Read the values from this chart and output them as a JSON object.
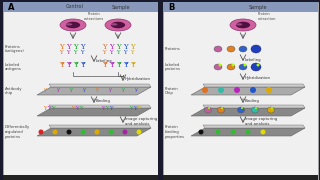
{
  "bg_color": "#1a1a2e",
  "panel_left_bg": "#f5f5f5",
  "panel_right_bg": "#f5f5f5",
  "header_color": "#8090b0",
  "left_label": "A",
  "right_label": "B",
  "left_col_labels": [
    "Control",
    "Sample"
  ],
  "right_col_labels": [
    "Sample"
  ],
  "left_side_labels": [
    "Proteins\n(antigens)",
    "Labeled\nantigens",
    "Antibody\nchip",
    "Differentially\nregulated\nproteins"
  ],
  "right_side_labels": [
    "Proteins",
    "Labeled\nproteins",
    "Protein\nChip",
    "Protein\nbinding\nproperties"
  ],
  "arrow_labels_left": [
    "Protein\nextractions",
    "Labeling",
    "Hybridization",
    "Binding",
    "Image capturing\nand analysis"
  ],
  "arrow_labels_right": [
    "Protein\nextraction",
    "Labeling",
    "Hybridization",
    "Binding",
    "Image capturing\nand analysis"
  ]
}
